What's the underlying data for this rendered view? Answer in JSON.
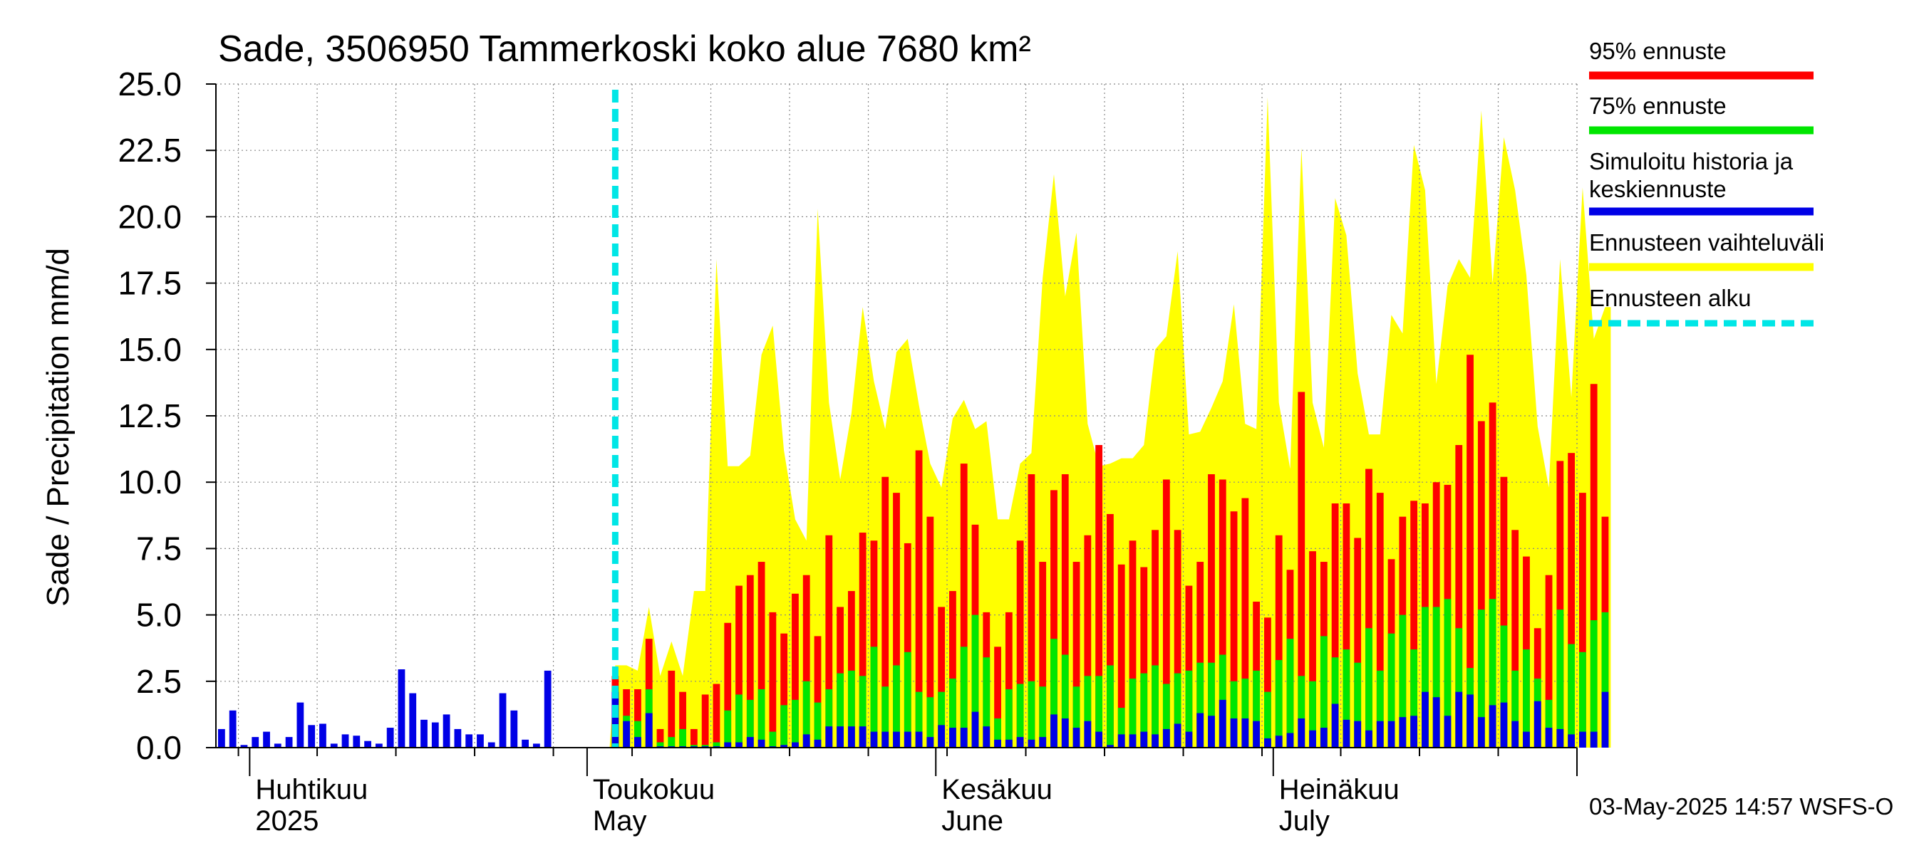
{
  "chart_data": {
    "type": "bar",
    "title": "Sade, 3506950 Tammerkoski koko alue 7680 km²",
    "ylabel": "Sade / Precipitation   mm/d",
    "ylim": [
      0,
      25
    ],
    "yticks": [
      "0.0",
      "2.5",
      "5.0",
      "7.5",
      "10.0",
      "12.5",
      "15.0",
      "17.5",
      "20.0",
      "22.5",
      "25.0"
    ],
    "x_start_date": "2025-03-29",
    "forecast_start_date": "2025-05-03",
    "x_end_date": "2025-07-28",
    "month_labels": [
      {
        "fi": "Huhtikuu",
        "en": "2025",
        "date": "2025-04-01"
      },
      {
        "fi": "Toukokuu",
        "en": "May",
        "date": "2025-05-01"
      },
      {
        "fi": "Kesäkuu",
        "en": "June",
        "date": "2025-06-01"
      },
      {
        "fi": "Heinäkuu",
        "en": "July",
        "date": "2025-07-01"
      }
    ],
    "grid": true,
    "legend_position": "right",
    "history": [
      0.7,
      1.4,
      0.1,
      0.4,
      0.6,
      0.15,
      0.4,
      1.7,
      0.85,
      0.9,
      0.15,
      0.5,
      0.45,
      0.25,
      0.15,
      0.75,
      2.95,
      2.05,
      1.05,
      0.95,
      1.25,
      0.7,
      0.5,
      0.5,
      0.2,
      2.05,
      1.4,
      0.3,
      0.15,
      2.9
    ],
    "forecast": {
      "p95": [
        2.7,
        2.2,
        2.2,
        4.1,
        0.7,
        2.9,
        2.1,
        0.7,
        2.0,
        2.4,
        4.7,
        6.1,
        6.5,
        7.0,
        5.1,
        4.3,
        5.8,
        6.5,
        4.2,
        8.0,
        5.3,
        5.9,
        8.1,
        7.8,
        10.2,
        9.6,
        7.7,
        11.2,
        8.7,
        5.3,
        5.9,
        10.7,
        8.4,
        5.1,
        3.8,
        5.1,
        7.8,
        10.3,
        7.0,
        9.7,
        10.3,
        7.0,
        8.0,
        11.4,
        8.8,
        6.9,
        7.8,
        6.8,
        8.2,
        10.1,
        8.2,
        6.1,
        7.0,
        10.3,
        10.1,
        8.9,
        9.4,
        5.5,
        4.9,
        8.0,
        6.7,
        13.4,
        7.4,
        7.0,
        9.2,
        9.2,
        7.9,
        10.5,
        9.6,
        7.1,
        8.7,
        9.3,
        9.2,
        10.0,
        9.9,
        11.4,
        14.8,
        12.3,
        13.0,
        10.2,
        8.2,
        7.2,
        4.5,
        6.5,
        10.8,
        11.1,
        9.6,
        13.7,
        8.7
      ],
      "p75": [
        2.3,
        1.2,
        1.0,
        2.2,
        0.2,
        0.4,
        0.7,
        0.1,
        0.1,
        0.2,
        1.4,
        2.0,
        1.8,
        2.2,
        0.6,
        1.6,
        1.8,
        2.5,
        1.7,
        2.2,
        2.8,
        2.9,
        2.7,
        3.8,
        2.3,
        3.1,
        3.6,
        2.1,
        1.9,
        2.1,
        2.6,
        3.8,
        5.0,
        3.4,
        1.1,
        2.2,
        2.4,
        2.5,
        2.3,
        4.1,
        3.5,
        2.3,
        2.7,
        2.7,
        3.1,
        1.5,
        2.6,
        2.8,
        3.1,
        2.4,
        2.8,
        2.9,
        3.2,
        3.2,
        3.5,
        2.5,
        2.6,
        2.9,
        2.1,
        3.3,
        4.1,
        2.7,
        2.5,
        4.2,
        3.4,
        3.7,
        3.2,
        4.5,
        2.9,
        4.3,
        5.0,
        3.7,
        5.3,
        5.3,
        5.6,
        4.5,
        3.0,
        5.2,
        5.6,
        4.6,
        2.9,
        3.7,
        2.6,
        1.8,
        5.2,
        3.9,
        3.6,
        4.8,
        5.1
      ],
      "median": [
        2.1,
        1.0,
        0.4,
        1.3,
        0.05,
        0.05,
        0.05,
        0.05,
        0.05,
        0.05,
        0.2,
        0.2,
        0.4,
        0.3,
        0.05,
        0.1,
        0.2,
        0.5,
        0.3,
        0.8,
        0.8,
        0.8,
        0.8,
        0.6,
        0.6,
        0.6,
        0.6,
        0.6,
        0.4,
        0.85,
        0.75,
        0.75,
        1.35,
        0.8,
        0.3,
        0.3,
        0.4,
        0.3,
        0.4,
        1.25,
        1.1,
        0.75,
        1.0,
        0.6,
        0.1,
        0.5,
        0.5,
        0.6,
        0.5,
        0.7,
        0.9,
        0.6,
        1.3,
        1.2,
        1.8,
        1.1,
        1.1,
        1.0,
        0.35,
        0.45,
        0.55,
        1.1,
        0.65,
        0.75,
        1.65,
        1.05,
        1.0,
        0.65,
        1.0,
        1.0,
        1.15,
        1.2,
        2.1,
        1.9,
        1.2,
        2.1,
        2.0,
        1.15,
        1.6,
        1.7,
        1.0,
        0.6,
        1.75,
        0.75,
        0.7,
        0.5,
        0.6,
        0.6,
        2.1
      ],
      "max": [
        3.1,
        3.1,
        2.9,
        5.3,
        2.7,
        4.0,
        2.7,
        5.9,
        5.9,
        18.4,
        10.6,
        10.6,
        11.0,
        14.8,
        15.9,
        11.2,
        8.6,
        7.8,
        20.3,
        13.0,
        10.1,
        12.6,
        16.6,
        13.8,
        12.0,
        14.9,
        15.4,
        12.9,
        10.7,
        9.8,
        12.4,
        13.1,
        12.0,
        12.3,
        8.6,
        8.6,
        10.7,
        11.1,
        17.7,
        21.6,
        17.0,
        19.4,
        12.2,
        10.6,
        10.7,
        10.9,
        10.9,
        11.4,
        15.0,
        15.5,
        18.7,
        11.8,
        11.9,
        12.8,
        13.8,
        16.7,
        12.2,
        12.0,
        24.5,
        13.0,
        10.5,
        22.6,
        13.0,
        11.3,
        20.7,
        19.3,
        14.1,
        11.8,
        11.8,
        16.3,
        15.6,
        22.7,
        21.0,
        13.7,
        17.4,
        18.4,
        17.7,
        24.0,
        17.5,
        23.0,
        21.0,
        17.8,
        12.1,
        9.8,
        18.4,
        13.2,
        21.1,
        15.4,
        16.6
      ]
    }
  },
  "legend": {
    "p95_label": "95% ennuste",
    "p75_label": "75% ennuste",
    "median_label_line1": "Simuloitu historia ja",
    "median_label_line2": "keskiennuste",
    "range_label": "Ennusteen vaihteluväli",
    "start_label": "Ennusteen alku"
  },
  "timestamp": "03-May-2025 14:57 WSFS-O",
  "colors": {
    "p95": "#ff0000",
    "p75": "#00e600",
    "median": "#0000e6",
    "range": "#ffff00",
    "forecast_start": "#00e6e6",
    "grid": "#888888"
  }
}
